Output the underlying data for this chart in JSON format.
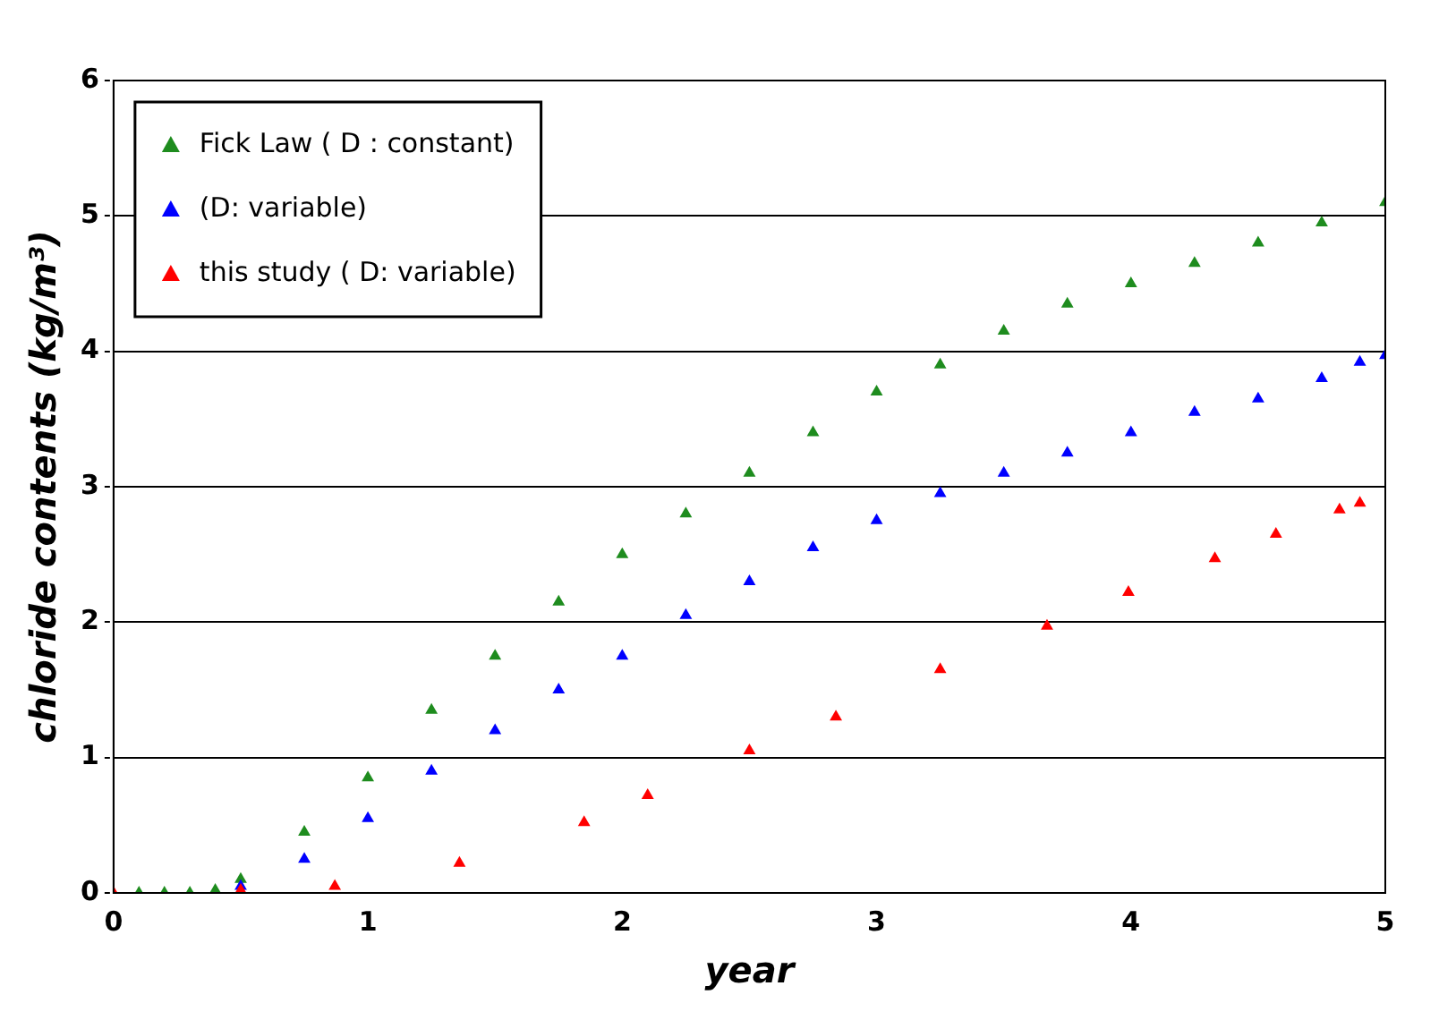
{
  "chart_data": {
    "type": "scatter",
    "xlabel": "year",
    "ylabel": "chloride contents (kg/m³)",
    "xlim": [
      0,
      5
    ],
    "xticks": [
      0,
      1,
      2,
      3,
      4,
      5
    ],
    "ylim": [
      0,
      6
    ],
    "yticks": [
      0,
      1,
      2,
      3,
      4,
      5,
      6
    ],
    "grid": "y",
    "legend": "top left",
    "marker": "triangle",
    "series": [
      {
        "name": "Fick Law ( D : constant)",
        "color": "#1e8c1e",
        "x": [
          0.1,
          0.2,
          0.3,
          0.4,
          0.5,
          0.75,
          1,
          1.25,
          1.5,
          1.75,
          2,
          2.25,
          2.5,
          2.75,
          3,
          3.25,
          3.5,
          3.75,
          4,
          4.25,
          4.5,
          4.75,
          5
        ],
        "values": [
          0,
          0,
          0,
          0.02,
          0.1,
          0.45,
          0.85,
          1.35,
          1.75,
          2.15,
          2.5,
          2.8,
          3.1,
          3.4,
          3.7,
          3.9,
          4.15,
          4.35,
          4.5,
          4.65,
          4.8,
          4.95,
          5.1
        ]
      },
      {
        "name": "(D: variable)",
        "color": "#0000ff",
        "x": [
          0.5,
          0.75,
          1,
          1.25,
          1.5,
          1.75,
          2,
          2.25,
          2.5,
          2.75,
          3,
          3.25,
          3.5,
          3.75,
          4,
          4.25,
          4.5,
          4.75,
          4.9,
          5
        ],
        "values": [
          0.05,
          0.25,
          0.55,
          0.9,
          1.2,
          1.5,
          1.75,
          2.05,
          2.3,
          2.55,
          2.75,
          2.95,
          3.1,
          3.25,
          3.4,
          3.55,
          3.65,
          3.8,
          3.92,
          3.97
        ]
      },
      {
        "name": "this study ( D: variable)",
        "color": "#ff0000",
        "x": [
          0,
          0.5,
          0.87,
          1.36,
          1.85,
          2.1,
          2.5,
          2.84,
          3.25,
          3.67,
          3.99,
          4.33,
          4.57,
          4.82,
          4.9
        ],
        "values": [
          0,
          0.02,
          0.05,
          0.22,
          0.52,
          0.72,
          1.05,
          1.3,
          1.65,
          1.97,
          2.22,
          2.47,
          2.65,
          2.83,
          2.88
        ]
      }
    ]
  }
}
